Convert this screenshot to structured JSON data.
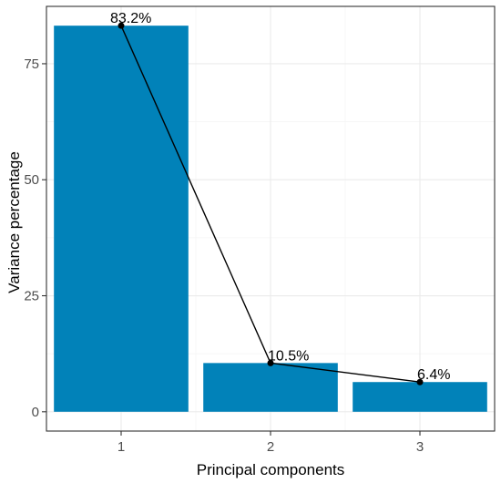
{
  "chart_data": {
    "type": "bar",
    "categories": [
      "1",
      "2",
      "3"
    ],
    "values": [
      83.2,
      10.5,
      6.4
    ],
    "labels": [
      "83.2%",
      "10.5%",
      "6.4%"
    ],
    "overlay": "line with points connecting bar tops",
    "xlabel": "Principal components",
    "ylabel": "Variance percentage",
    "yticks": [
      0,
      25,
      50,
      75
    ],
    "ytick_labels": [
      "0",
      "25",
      "50",
      "75"
    ],
    "ylim": [
      -4.16,
      87.36
    ],
    "grid": true,
    "legend": "none",
    "colors": {
      "bar": "#0182b9",
      "line": "#000000",
      "grid_major": "#ebebeb",
      "grid_minor": "#f5f5f5",
      "panel_border": "#333333"
    }
  }
}
